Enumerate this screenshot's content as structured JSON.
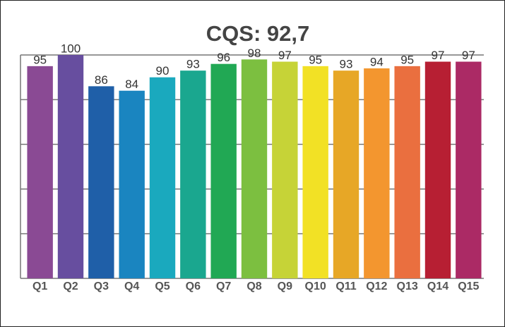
{
  "chart_data": {
    "type": "bar",
    "title": "CQS: 92,7",
    "categories": [
      "Q1",
      "Q2",
      "Q3",
      "Q4",
      "Q5",
      "Q6",
      "Q7",
      "Q8",
      "Q9",
      "Q10",
      "Q11",
      "Q12",
      "Q13",
      "Q14",
      "Q15"
    ],
    "values": [
      95,
      100,
      86,
      84,
      90,
      93,
      96,
      98,
      97,
      95,
      93,
      94,
      95,
      97,
      97
    ],
    "colors": [
      "#8a4a94",
      "#674e9f",
      "#1f5fa8",
      "#1a85c0",
      "#1aa9be",
      "#1aa78f",
      "#21a854",
      "#7cbf40",
      "#c6d337",
      "#f2e125",
      "#e7a726",
      "#f3962f",
      "#ea6f3f",
      "#b71f33",
      "#ab2a65"
    ],
    "ylim": [
      0,
      100
    ],
    "yticks": [
      0,
      20,
      40,
      60,
      80,
      100
    ],
    "grid": true
  }
}
